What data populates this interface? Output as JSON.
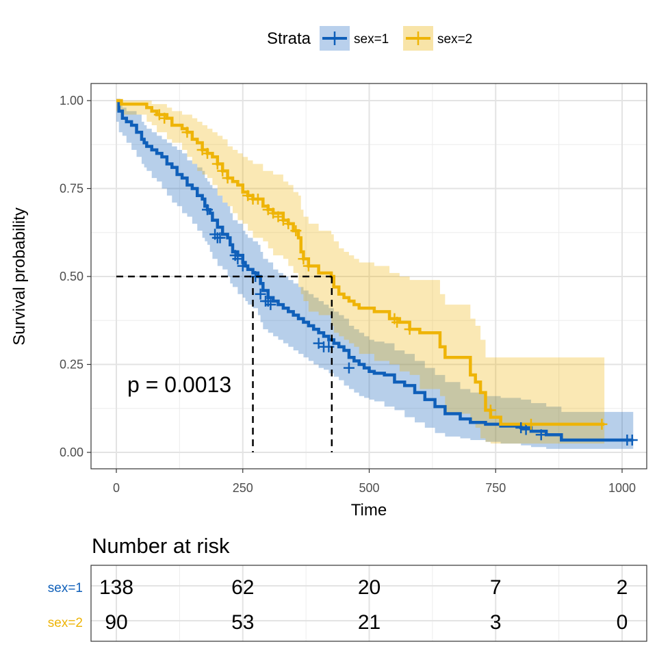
{
  "legend": {
    "title": "Strata",
    "items": [
      {
        "label": "sex=1",
        "color": "#0F5FB9",
        "fill": "#B9D0EC"
      },
      {
        "label": "sex=2",
        "color": "#EEB407",
        "fill": "#F8E4A8"
      }
    ]
  },
  "pvalue_text": "p = 0.0013",
  "risk_table": {
    "title": "Number at risk",
    "rows": [
      {
        "label": "sex=1",
        "values": [
          "138",
          "62",
          "20",
          "7",
          "2"
        ]
      },
      {
        "label": "sex=2",
        "values": [
          "90",
          "53",
          "21",
          "3",
          "0"
        ]
      }
    ],
    "times": [
      0,
      250,
      500,
      750,
      1000
    ]
  },
  "chart_data": {
    "type": "line",
    "title": "",
    "xlabel": "Time",
    "ylabel": "Survival probability",
    "xlim": [
      0,
      1000
    ],
    "ylim": [
      0,
      1
    ],
    "xticks": [
      "0",
      "250",
      "500",
      "750",
      "1000"
    ],
    "yticks": [
      "0.00",
      "0.25",
      "0.50",
      "0.75",
      "1.00"
    ],
    "grid": true,
    "legend_position": "top",
    "median_survival": [
      270,
      426
    ],
    "series": [
      {
        "name": "sex=1",
        "step_x": [
          0,
          5,
          12,
          20,
          30,
          40,
          50,
          55,
          60,
          70,
          80,
          90,
          100,
          110,
          120,
          130,
          140,
          150,
          160,
          170,
          175,
          180,
          185,
          190,
          200,
          210,
          220,
          225,
          230,
          240,
          250,
          255,
          260,
          270,
          280,
          285,
          290,
          300,
          310,
          320,
          330,
          340,
          350,
          360,
          370,
          380,
          390,
          400,
          410,
          420,
          430,
          440,
          450,
          460,
          470,
          480,
          490,
          500,
          510,
          530,
          550,
          570,
          590,
          610,
          630,
          650,
          680,
          700,
          730,
          760,
          800,
          820,
          850,
          880,
          1022
        ],
        "step_y": [
          1.0,
          0.97,
          0.95,
          0.94,
          0.93,
          0.91,
          0.89,
          0.88,
          0.87,
          0.86,
          0.85,
          0.84,
          0.82,
          0.81,
          0.79,
          0.78,
          0.76,
          0.75,
          0.73,
          0.72,
          0.7,
          0.69,
          0.68,
          0.66,
          0.64,
          0.62,
          0.61,
          0.59,
          0.57,
          0.56,
          0.54,
          0.53,
          0.52,
          0.51,
          0.5,
          0.48,
          0.46,
          0.44,
          0.43,
          0.42,
          0.41,
          0.4,
          0.39,
          0.38,
          0.37,
          0.36,
          0.35,
          0.34,
          0.33,
          0.32,
          0.31,
          0.3,
          0.29,
          0.27,
          0.26,
          0.25,
          0.24,
          0.23,
          0.225,
          0.22,
          0.2,
          0.19,
          0.17,
          0.15,
          0.13,
          0.11,
          0.095,
          0.085,
          0.08,
          0.075,
          0.07,
          0.06,
          0.05,
          0.035,
          0.035
        ],
        "lower": [
          1.0,
          0.94,
          0.91,
          0.9,
          0.88,
          0.86,
          0.84,
          0.82,
          0.81,
          0.8,
          0.78,
          0.77,
          0.75,
          0.73,
          0.71,
          0.7,
          0.68,
          0.67,
          0.65,
          0.63,
          0.61,
          0.6,
          0.59,
          0.57,
          0.55,
          0.53,
          0.52,
          0.5,
          0.48,
          0.47,
          0.45,
          0.44,
          0.43,
          0.42,
          0.41,
          0.39,
          0.37,
          0.35,
          0.34,
          0.33,
          0.32,
          0.31,
          0.3,
          0.29,
          0.28,
          0.27,
          0.26,
          0.25,
          0.24,
          0.235,
          0.225,
          0.215,
          0.205,
          0.19,
          0.18,
          0.17,
          0.16,
          0.155,
          0.15,
          0.145,
          0.13,
          0.12,
          0.1,
          0.085,
          0.07,
          0.055,
          0.045,
          0.04,
          0.035,
          0.03,
          0.025,
          0.02,
          0.015,
          0.01,
          0.01
        ],
        "upper": [
          1.0,
          0.99,
          0.98,
          0.97,
          0.97,
          0.96,
          0.94,
          0.93,
          0.92,
          0.91,
          0.9,
          0.89,
          0.88,
          0.87,
          0.86,
          0.85,
          0.83,
          0.82,
          0.81,
          0.8,
          0.78,
          0.77,
          0.76,
          0.75,
          0.73,
          0.71,
          0.7,
          0.68,
          0.66,
          0.65,
          0.63,
          0.62,
          0.61,
          0.6,
          0.59,
          0.57,
          0.55,
          0.54,
          0.52,
          0.51,
          0.5,
          0.49,
          0.48,
          0.47,
          0.46,
          0.45,
          0.44,
          0.43,
          0.42,
          0.41,
          0.4,
          0.39,
          0.38,
          0.36,
          0.35,
          0.34,
          0.33,
          0.32,
          0.315,
          0.31,
          0.29,
          0.28,
          0.26,
          0.24,
          0.22,
          0.2,
          0.18,
          0.17,
          0.16,
          0.155,
          0.15,
          0.14,
          0.13,
          0.115,
          0.115
        ],
        "censor_x": [
          180,
          195,
          200,
          205,
          235,
          240,
          250,
          275,
          285,
          295,
          300,
          305,
          400,
          410,
          420,
          460,
          800,
          810,
          840,
          1010,
          1020
        ],
        "censor_y": [
          0.69,
          0.62,
          0.61,
          0.61,
          0.56,
          0.55,
          0.53,
          0.5,
          0.45,
          0.43,
          0.43,
          0.42,
          0.31,
          0.3,
          0.3,
          0.24,
          0.07,
          0.065,
          0.05,
          0.035,
          0.035
        ]
      },
      {
        "name": "sex=2",
        "step_x": [
          0,
          10,
          60,
          70,
          80,
          100,
          110,
          130,
          140,
          150,
          160,
          170,
          180,
          190,
          200,
          210,
          220,
          230,
          240,
          250,
          260,
          270,
          290,
          300,
          310,
          330,
          340,
          350,
          360,
          365,
          370,
          380,
          400,
          425,
          430,
          440,
          450,
          460,
          470,
          480,
          510,
          540,
          560,
          580,
          600,
          640,
          650,
          700,
          710,
          720,
          730,
          740,
          760,
          965
        ],
        "step_y": [
          1.0,
          0.99,
          0.98,
          0.97,
          0.96,
          0.95,
          0.93,
          0.92,
          0.91,
          0.89,
          0.88,
          0.86,
          0.85,
          0.84,
          0.82,
          0.8,
          0.78,
          0.77,
          0.76,
          0.74,
          0.73,
          0.72,
          0.7,
          0.69,
          0.68,
          0.66,
          0.65,
          0.63,
          0.61,
          0.57,
          0.55,
          0.53,
          0.51,
          0.5,
          0.47,
          0.45,
          0.44,
          0.43,
          0.42,
          0.41,
          0.4,
          0.38,
          0.37,
          0.35,
          0.34,
          0.3,
          0.27,
          0.22,
          0.2,
          0.17,
          0.12,
          0.1,
          0.08,
          0.08
        ],
        "lower": [
          1.0,
          0.97,
          0.96,
          0.94,
          0.93,
          0.91,
          0.89,
          0.88,
          0.86,
          0.84,
          0.82,
          0.8,
          0.79,
          0.78,
          0.76,
          0.73,
          0.71,
          0.7,
          0.68,
          0.66,
          0.65,
          0.63,
          0.61,
          0.6,
          0.58,
          0.56,
          0.55,
          0.53,
          0.51,
          0.47,
          0.45,
          0.43,
          0.4,
          0.39,
          0.36,
          0.34,
          0.33,
          0.32,
          0.31,
          0.3,
          0.28,
          0.26,
          0.25,
          0.23,
          0.22,
          0.18,
          0.16,
          0.11,
          0.09,
          0.07,
          0.04,
          0.03,
          0.025,
          0.025
        ],
        "upper": [
          1.0,
          1.0,
          1.0,
          0.99,
          0.99,
          0.98,
          0.97,
          0.96,
          0.96,
          0.95,
          0.94,
          0.93,
          0.92,
          0.91,
          0.9,
          0.89,
          0.87,
          0.86,
          0.85,
          0.84,
          0.83,
          0.82,
          0.8,
          0.8,
          0.79,
          0.77,
          0.76,
          0.74,
          0.73,
          0.69,
          0.67,
          0.65,
          0.63,
          0.62,
          0.6,
          0.58,
          0.57,
          0.56,
          0.55,
          0.54,
          0.53,
          0.51,
          0.5,
          0.49,
          0.49,
          0.45,
          0.42,
          0.38,
          0.36,
          0.32,
          0.27,
          0.27,
          0.27,
          0.27
        ],
        "censor_x": [
          85,
          95,
          140,
          170,
          180,
          200,
          210,
          220,
          260,
          270,
          280,
          300,
          310,
          320,
          330,
          340,
          355,
          370,
          380,
          550,
          555,
          580,
          740,
          820,
          960
        ],
        "censor_y": [
          0.96,
          0.95,
          0.91,
          0.86,
          0.85,
          0.82,
          0.8,
          0.78,
          0.73,
          0.72,
          0.72,
          0.69,
          0.68,
          0.67,
          0.66,
          0.65,
          0.63,
          0.55,
          0.53,
          0.38,
          0.37,
          0.35,
          0.12,
          0.08,
          0.08
        ]
      }
    ]
  }
}
